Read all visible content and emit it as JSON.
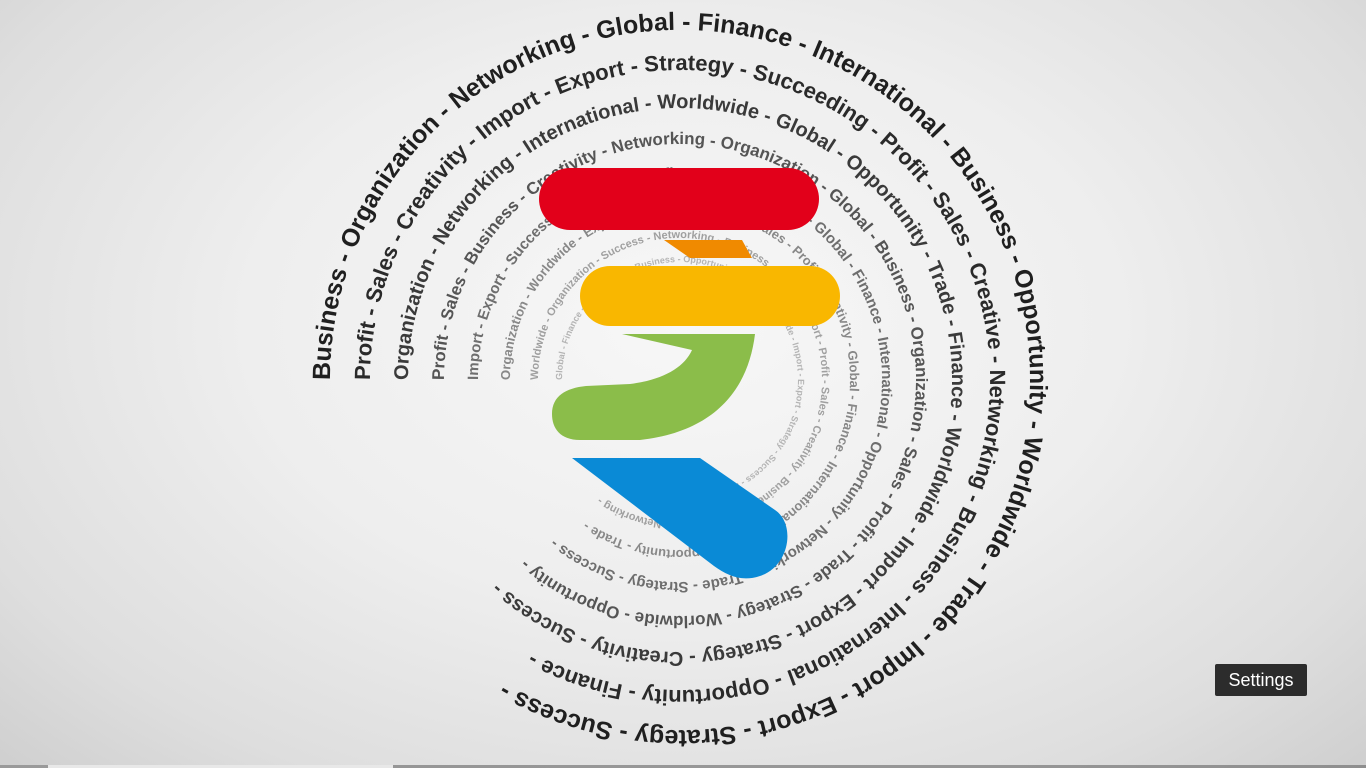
{
  "video": {
    "tooltip": "Settings",
    "progress_fraction": 0.035,
    "buffered_fraction": 0.287
  },
  "spiral": {
    "words": [
      "Business",
      "Organization",
      "Networking",
      "Global",
      "Finance",
      "International",
      "Business",
      "Opportunity",
      "Worldwide",
      "Trade",
      "Import",
      "Export",
      "Strategy",
      "Success",
      "Profit",
      "Sales",
      "Creativity",
      "Import",
      "Export",
      "Strategy",
      "Succeeding",
      "Profit",
      "Sales",
      "Creative",
      "Networking",
      "Business",
      "International",
      "Opportunity",
      "Finance",
      "Organization",
      "Networking",
      "International",
      "Worldwide",
      "Global",
      "Opportunity",
      "Trade",
      "Finance",
      "Worldwide",
      "Import",
      "Export",
      "Strategy",
      "Creativity",
      "Success",
      "Profit",
      "Sales",
      "Business",
      "Creativity",
      "Networking",
      "Organization",
      "Global",
      "Business",
      "Organization",
      "Sales",
      "Profit",
      "Trade",
      "Strategy",
      "Worldwide",
      "Opportunity",
      "Import",
      "Export",
      "Success",
      "Creativity",
      "Profit",
      "Sales",
      "Business",
      "Global",
      "Finance",
      "International",
      "Opportunity",
      "Networking",
      "Trade",
      "Strategy",
      "Success",
      "Organization",
      "Worldwide",
      "Export",
      "Import",
      "Business",
      "Sales",
      "Profit",
      "Creativity",
      "Global",
      "Finance",
      "International",
      "Strategy",
      "Opportunity",
      "Trade",
      "Worldwide",
      "Organization",
      "Success",
      "Networking",
      "Business",
      "Export",
      "Import",
      "Profit",
      "Sales",
      "Creativity"
    ]
  },
  "logo": {
    "colors": {
      "red": "#e2001a",
      "orange": "#f08a00",
      "yellow": "#f9b700",
      "green": "#8bbd4a",
      "blue": "#0a8ad6"
    }
  }
}
